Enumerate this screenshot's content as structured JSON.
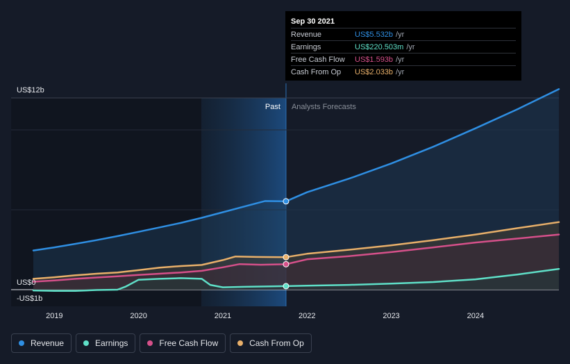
{
  "tooltip": {
    "date": "Sep 30 2021",
    "rows": [
      {
        "name": "Revenue",
        "value": "US$5.532b",
        "unit": "/yr",
        "color": "#2f8fe3"
      },
      {
        "name": "Earnings",
        "value": "US$220.503m",
        "unit": "/yr",
        "color": "#5fe0c8"
      },
      {
        "name": "Free Cash Flow",
        "value": "US$1.593b",
        "unit": "/yr",
        "color": "#d6508a"
      },
      {
        "name": "Cash From Op",
        "value": "US$2.033b",
        "unit": "/yr",
        "color": "#e9b06a"
      }
    ]
  },
  "legend": [
    {
      "label": "Revenue",
      "color": "#2f8fe3"
    },
    {
      "label": "Earnings",
      "color": "#5fe0c8"
    },
    {
      "label": "Free Cash Flow",
      "color": "#d6508a"
    },
    {
      "label": "Cash From Op",
      "color": "#e9b06a"
    }
  ],
  "chart_data": {
    "type": "area",
    "y_unit_labels": {
      "top": "US$12b",
      "zero": "US$0",
      "bottom": "-US$1b"
    },
    "ylim": [
      -1,
      12
    ],
    "xlim": [
      2018.75,
      2024.99
    ],
    "x_ticks": [
      2019,
      2020,
      2021,
      2022,
      2023,
      2024
    ],
    "divider_x": 2021.75,
    "past_label": "Past",
    "forecast_label": "Analysts Forecasts",
    "grid": true,
    "series": [
      {
        "name": "Revenue",
        "color": "#2f8fe3",
        "points": [
          [
            2018.75,
            2.45
          ],
          [
            2019.0,
            2.65
          ],
          [
            2019.25,
            2.87
          ],
          [
            2019.5,
            3.1
          ],
          [
            2019.75,
            3.35
          ],
          [
            2020.0,
            3.62
          ],
          [
            2020.25,
            3.9
          ],
          [
            2020.5,
            4.18
          ],
          [
            2020.75,
            4.5
          ],
          [
            2021.0,
            4.85
          ],
          [
            2021.25,
            5.2
          ],
          [
            2021.5,
            5.55
          ],
          [
            2021.75,
            5.532
          ],
          [
            2022.0,
            6.1
          ],
          [
            2022.5,
            6.95
          ],
          [
            2023.0,
            7.9
          ],
          [
            2023.5,
            8.95
          ],
          [
            2024.0,
            10.1
          ],
          [
            2024.5,
            11.3
          ],
          [
            2024.99,
            12.55
          ]
        ]
      },
      {
        "name": "Cash From Op",
        "color": "#e9b06a",
        "points": [
          [
            2018.75,
            0.68
          ],
          [
            2019.0,
            0.78
          ],
          [
            2019.25,
            0.9
          ],
          [
            2019.5,
            1.0
          ],
          [
            2019.75,
            1.08
          ],
          [
            2020.0,
            1.22
          ],
          [
            2020.25,
            1.38
          ],
          [
            2020.5,
            1.48
          ],
          [
            2020.75,
            1.55
          ],
          [
            2021.0,
            1.85
          ],
          [
            2021.15,
            2.08
          ],
          [
            2021.4,
            2.05
          ],
          [
            2021.75,
            2.033
          ],
          [
            2022.0,
            2.25
          ],
          [
            2022.5,
            2.5
          ],
          [
            2023.0,
            2.78
          ],
          [
            2023.5,
            3.1
          ],
          [
            2024.0,
            3.45
          ],
          [
            2024.5,
            3.85
          ],
          [
            2024.99,
            4.23
          ]
        ]
      },
      {
        "name": "Free Cash Flow",
        "color": "#d6508a",
        "points": [
          [
            2018.75,
            0.5
          ],
          [
            2019.0,
            0.58
          ],
          [
            2019.25,
            0.68
          ],
          [
            2019.5,
            0.76
          ],
          [
            2019.75,
            0.84
          ],
          [
            2020.0,
            0.92
          ],
          [
            2020.25,
            1.0
          ],
          [
            2020.5,
            1.08
          ],
          [
            2020.75,
            1.18
          ],
          [
            2021.0,
            1.4
          ],
          [
            2021.2,
            1.6
          ],
          [
            2021.45,
            1.56
          ],
          [
            2021.75,
            1.593
          ],
          [
            2022.0,
            1.9
          ],
          [
            2022.5,
            2.1
          ],
          [
            2023.0,
            2.35
          ],
          [
            2023.5,
            2.65
          ],
          [
            2024.0,
            2.95
          ],
          [
            2024.5,
            3.2
          ],
          [
            2024.99,
            3.45
          ]
        ]
      },
      {
        "name": "Earnings",
        "color": "#5fe0c8",
        "points": [
          [
            2018.75,
            -0.05
          ],
          [
            2019.0,
            -0.08
          ],
          [
            2019.25,
            -0.08
          ],
          [
            2019.5,
            -0.02
          ],
          [
            2019.75,
            0.0
          ],
          [
            2019.85,
            0.2
          ],
          [
            2020.0,
            0.62
          ],
          [
            2020.25,
            0.68
          ],
          [
            2020.5,
            0.72
          ],
          [
            2020.75,
            0.68
          ],
          [
            2020.85,
            0.3
          ],
          [
            2021.0,
            0.15
          ],
          [
            2021.25,
            0.18
          ],
          [
            2021.5,
            0.2
          ],
          [
            2021.75,
            0.2205
          ],
          [
            2022.0,
            0.25
          ],
          [
            2022.5,
            0.3
          ],
          [
            2023.0,
            0.38
          ],
          [
            2023.5,
            0.48
          ],
          [
            2024.0,
            0.65
          ],
          [
            2024.5,
            0.95
          ],
          [
            2024.99,
            1.3
          ]
        ]
      }
    ]
  }
}
